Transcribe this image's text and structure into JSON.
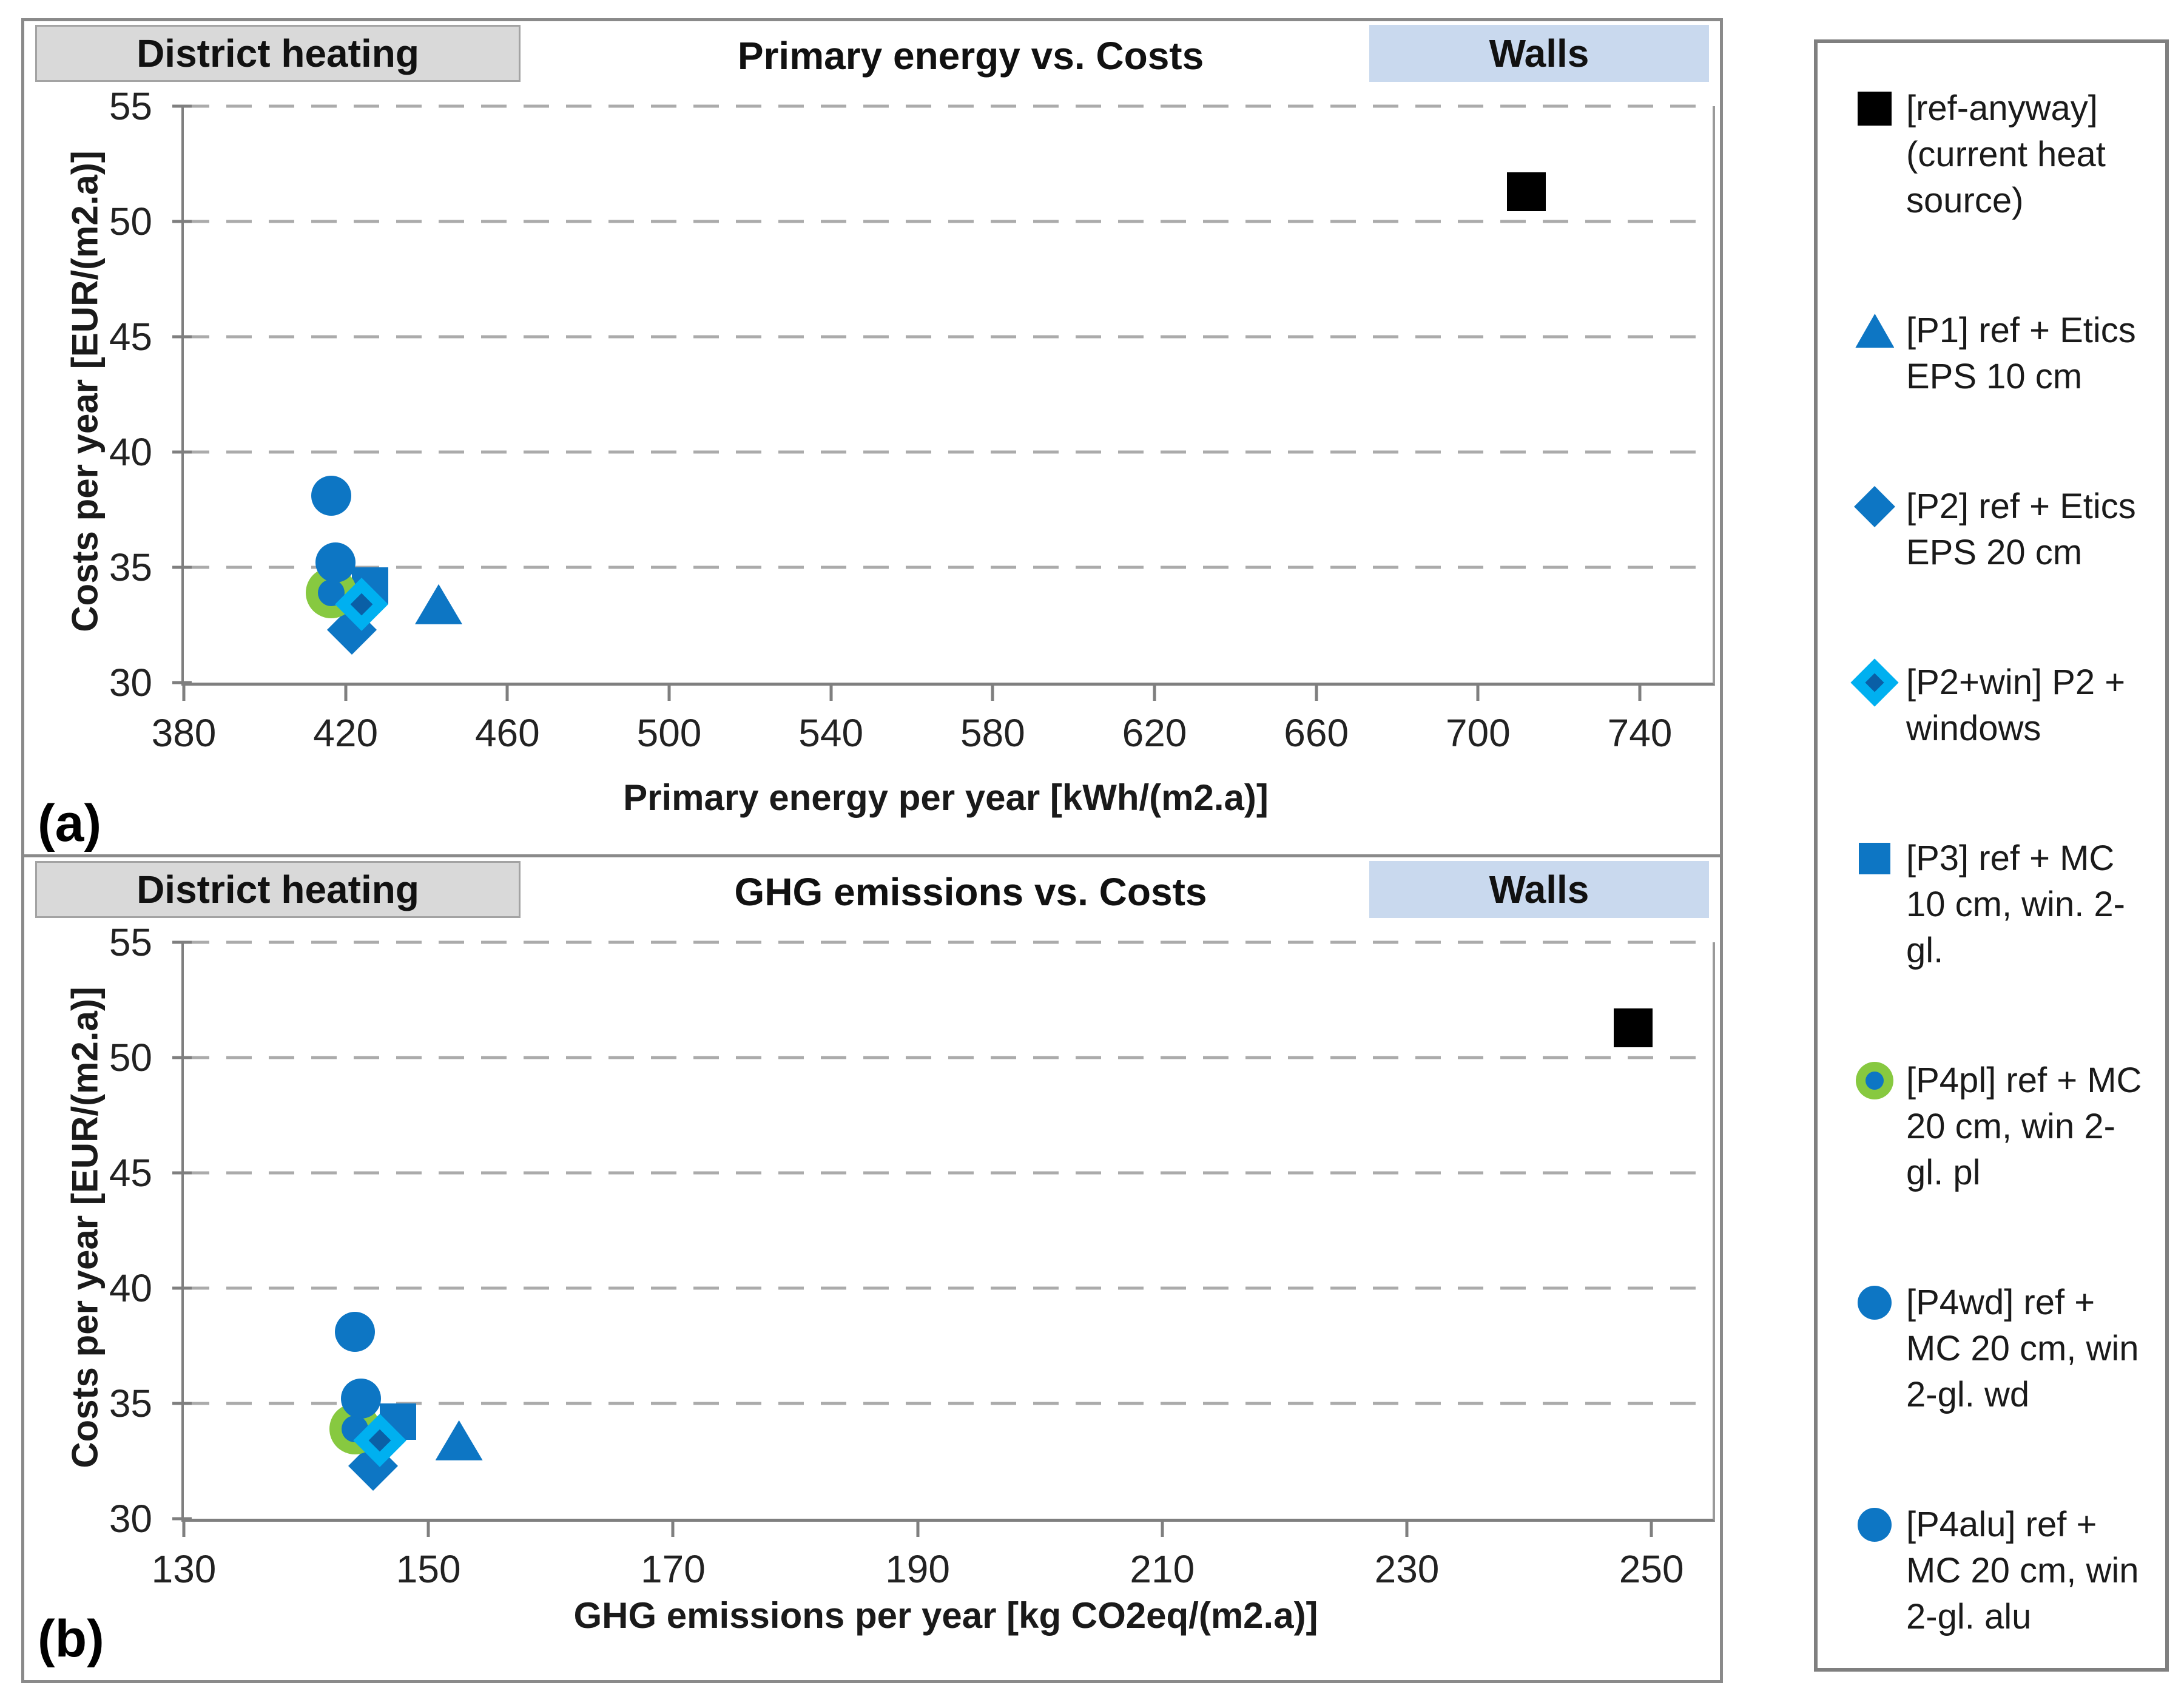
{
  "figure": {
    "background": "#ffffff",
    "heat_source_label": "District heating",
    "walls_label": "Walls"
  },
  "colors": {
    "marker_blue": "#0d76c4",
    "marker_cyan": "#00b0f0",
    "marker_green": "#87c940",
    "marker_black": "#000000",
    "diamond_inner_blue": "#0a5fa6",
    "header_gray_bg": "#d9d9d9",
    "walls_blue_bg": "#c9d9ee",
    "gridline_gray": "#ababab",
    "axis_gray": "#7f7f7f",
    "box_border_gray": "#8a8a8a",
    "text_dark": "#1a1a1a"
  },
  "legend": {
    "items": [
      {
        "id": "ref-anyway",
        "marker": "square-black",
        "label": "[ref-anyway] (current heat source)"
      },
      {
        "id": "P1",
        "marker": "triangle-blue",
        "label": "[P1] ref + Etics EPS 10 cm"
      },
      {
        "id": "P2",
        "marker": "diamond-blue",
        "label": "[P2] ref + Etics EPS 20 cm"
      },
      {
        "id": "P2+win",
        "marker": "diamond-cyan",
        "label": "[P2+win] P2 + windows"
      },
      {
        "id": "P3",
        "marker": "square-blue",
        "label": "[P3] ref + MC 10 cm, win. 2-gl."
      },
      {
        "id": "P4pl",
        "marker": "circle-green",
        "label": "[P4pl] ref + MC 20 cm, win 2-gl. pl"
      },
      {
        "id": "P4wd",
        "marker": "circle-blue",
        "label": "[P4wd] ref + MC 20 cm, win 2-gl. wd"
      },
      {
        "id": "P4alu",
        "marker": "circle-blue",
        "label": "[P4alu] ref + MC 20 cm, win 2-gl. alu"
      }
    ]
  },
  "chart_data": [
    {
      "type": "scatter",
      "panel_label": "(a)",
      "heat_source_label": "District heating",
      "walls_label": "Walls",
      "title": "Primary energy vs. Costs",
      "xlabel": "Primary energy per year  [kWh/(m2.a)]",
      "ylabel": "Costs per year  [EUR/(m2.a)]",
      "xlim": [
        380,
        758
      ],
      "ylim": [
        30,
        55
      ],
      "x_ticks": [
        380,
        420,
        460,
        500,
        540,
        580,
        620,
        660,
        700,
        740
      ],
      "y_ticks": [
        30,
        35,
        40,
        45,
        50,
        55
      ],
      "grid": "horizontal-dashed",
      "legend_position": "outside-right",
      "series": [
        {
          "name": "[ref-anyway] (current heat source)",
          "marker": "square-black",
          "z": 1,
          "points": [
            [
              712,
              51.3
            ]
          ]
        },
        {
          "name": "[P1] ref + Etics EPS 10 cm",
          "marker": "triangle-blue",
          "z": 2,
          "points": [
            [
              443,
              33.4
            ]
          ]
        },
        {
          "name": "[P2] ref + Etics EPS 20 cm",
          "marker": "diamond-blue",
          "z": 3,
          "points": [
            [
              421.5,
              32.3
            ]
          ]
        },
        {
          "name": "[P2+win] P2 + windows",
          "marker": "diamond-cyan",
          "z": 6,
          "points": [
            [
              424,
              33.4
            ]
          ]
        },
        {
          "name": "[P3] ref + MC 10 cm, win. 2-gl.",
          "marker": "square-blue",
          "z": 4,
          "points": [
            [
              426,
              34.2
            ]
          ]
        },
        {
          "name": "[P4pl] ref + MC 20 cm, win 2-gl. pl",
          "marker": "circle-green",
          "z": 5,
          "points": [
            [
              416.5,
              33.9
            ]
          ]
        },
        {
          "name": "[P4wd] ref + MC 20 cm, win 2-gl. wd",
          "marker": "circle-blue",
          "z": 8,
          "points": [
            [
              416.5,
              38.1
            ]
          ]
        },
        {
          "name": "[P4alu] ref + MC 20 cm, win 2-gl. alu",
          "marker": "circle-blue",
          "z": 7,
          "points": [
            [
              417.5,
              35.2
            ]
          ]
        }
      ]
    },
    {
      "type": "scatter",
      "panel_label": "(b)",
      "heat_source_label": "District heating",
      "walls_label": "Walls",
      "title": "GHG emissions vs. Costs",
      "xlabel": "GHG emissions per year  [kg CO2eq/(m2.a)]",
      "ylabel": "Costs per year  [EUR/(m2.a)]",
      "xlim": [
        130,
        255
      ],
      "ylim": [
        30,
        55
      ],
      "x_ticks": [
        130,
        150,
        170,
        190,
        210,
        230,
        250
      ],
      "y_ticks": [
        30,
        35,
        40,
        45,
        50,
        55
      ],
      "grid": "horizontal-dashed",
      "legend_position": "outside-right",
      "series": [
        {
          "name": "[ref-anyway] (current heat source)",
          "marker": "square-black",
          "z": 1,
          "points": [
            [
              248.5,
              51.3
            ]
          ]
        },
        {
          "name": "[P1] ref + Etics EPS 10 cm",
          "marker": "triangle-blue",
          "z": 2,
          "points": [
            [
              152.5,
              33.4
            ]
          ]
        },
        {
          "name": "[P2] ref + Etics EPS 20 cm",
          "marker": "diamond-blue",
          "z": 3,
          "points": [
            [
              145.5,
              32.3
            ]
          ]
        },
        {
          "name": "[P2+win] P2 + windows",
          "marker": "diamond-cyan",
          "z": 6,
          "points": [
            [
              146,
              33.4
            ]
          ]
        },
        {
          "name": "[P3] ref + MC 10 cm, win. 2-gl.",
          "marker": "square-blue",
          "z": 4,
          "points": [
            [
              147.5,
              34.2
            ]
          ]
        },
        {
          "name": "[P4pl] ref + MC 20 cm, win 2-gl. pl",
          "marker": "circle-green",
          "z": 5,
          "points": [
            [
              144,
              33.9
            ]
          ]
        },
        {
          "name": "[P4wd] ref + MC 20 cm, win 2-gl. wd",
          "marker": "circle-blue",
          "z": 8,
          "points": [
            [
              144,
              38.1
            ]
          ]
        },
        {
          "name": "[P4alu] ref + MC 20 cm, win 2-gl. alu",
          "marker": "circle-blue",
          "z": 7,
          "points": [
            [
              144.5,
              35.2
            ]
          ]
        }
      ]
    }
  ]
}
